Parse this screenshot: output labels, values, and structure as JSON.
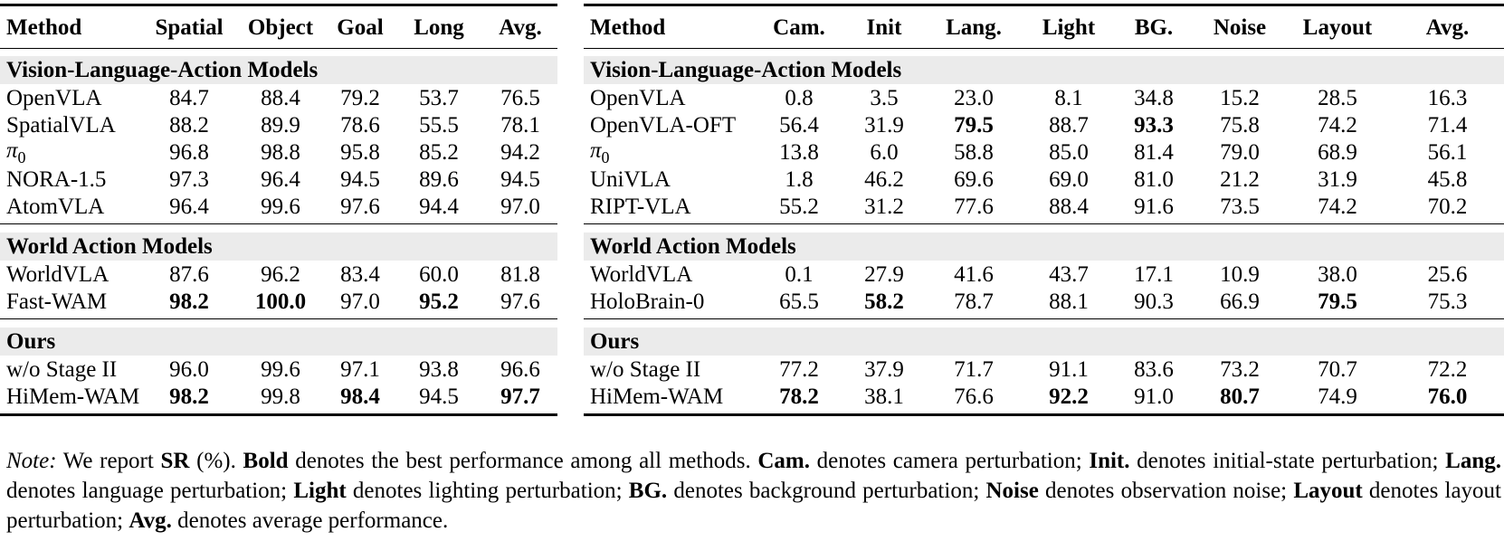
{
  "left_table": {
    "headers": [
      "Method",
      "Spatial",
      "Object",
      "Goal",
      "Long",
      "Avg."
    ],
    "groups": [
      {
        "title": "Vision-Language-Action Models",
        "rows": [
          {
            "method": "OpenVLA",
            "values": [
              "84.7",
              "88.4",
              "79.2",
              "53.7",
              "76.5"
            ],
            "bold": [
              false,
              false,
              false,
              false,
              false
            ]
          },
          {
            "method": "SpatialVLA",
            "values": [
              "88.2",
              "89.9",
              "78.6",
              "55.5",
              "78.1"
            ],
            "bold": [
              false,
              false,
              false,
              false,
              false
            ]
          },
          {
            "method": "π0",
            "values": [
              "96.8",
              "98.8",
              "95.8",
              "85.2",
              "94.2"
            ],
            "bold": [
              false,
              false,
              false,
              false,
              false
            ]
          },
          {
            "method": "NORA-1.5",
            "values": [
              "97.3",
              "96.4",
              "94.5",
              "89.6",
              "94.5"
            ],
            "bold": [
              false,
              false,
              false,
              false,
              false
            ]
          },
          {
            "method": "AtomVLA",
            "values": [
              "96.4",
              "99.6",
              "97.6",
              "94.4",
              "97.0"
            ],
            "bold": [
              false,
              false,
              false,
              false,
              false
            ]
          }
        ]
      },
      {
        "title": "World Action Models",
        "rows": [
          {
            "method": "WorldVLA",
            "values": [
              "87.6",
              "96.2",
              "83.4",
              "60.0",
              "81.8"
            ],
            "bold": [
              false,
              false,
              false,
              false,
              false
            ]
          },
          {
            "method": "Fast-WAM",
            "values": [
              "98.2",
              "100.0",
              "97.0",
              "95.2",
              "97.6"
            ],
            "bold": [
              true,
              true,
              false,
              true,
              false
            ]
          }
        ]
      },
      {
        "title": "Ours",
        "rows": [
          {
            "method": "w/o Stage II",
            "values": [
              "96.0",
              "99.6",
              "97.1",
              "93.8",
              "96.6"
            ],
            "bold": [
              false,
              false,
              false,
              false,
              false
            ]
          },
          {
            "method": "HiMem-WAM",
            "values": [
              "98.2",
              "99.8",
              "98.4",
              "94.5",
              "97.7"
            ],
            "bold": [
              true,
              false,
              true,
              false,
              true
            ]
          }
        ]
      }
    ]
  },
  "right_table": {
    "headers": [
      "Method",
      "Cam.",
      "Init",
      "Lang.",
      "Light",
      "BG.",
      "Noise",
      "Layout",
      "Avg."
    ],
    "groups": [
      {
        "title": "Vision-Language-Action Models",
        "rows": [
          {
            "method": "OpenVLA",
            "values": [
              "0.8",
              "3.5",
              "23.0",
              "8.1",
              "34.8",
              "15.2",
              "28.5",
              "16.3"
            ],
            "bold": [
              false,
              false,
              false,
              false,
              false,
              false,
              false,
              false
            ]
          },
          {
            "method": "OpenVLA-OFT",
            "values": [
              "56.4",
              "31.9",
              "79.5",
              "88.7",
              "93.3",
              "75.8",
              "74.2",
              "71.4"
            ],
            "bold": [
              false,
              false,
              true,
              false,
              true,
              false,
              false,
              false
            ]
          },
          {
            "method": "π0",
            "values": [
              "13.8",
              "6.0",
              "58.8",
              "85.0",
              "81.4",
              "79.0",
              "68.9",
              "56.1"
            ],
            "bold": [
              false,
              false,
              false,
              false,
              false,
              false,
              false,
              false
            ]
          },
          {
            "method": "UniVLA",
            "values": [
              "1.8",
              "46.2",
              "69.6",
              "69.0",
              "81.0",
              "21.2",
              "31.9",
              "45.8"
            ],
            "bold": [
              false,
              false,
              false,
              false,
              false,
              false,
              false,
              false
            ]
          },
          {
            "method": "RIPT-VLA",
            "values": [
              "55.2",
              "31.2",
              "77.6",
              "88.4",
              "91.6",
              "73.5",
              "74.2",
              "70.2"
            ],
            "bold": [
              false,
              false,
              false,
              false,
              false,
              false,
              false,
              false
            ]
          }
        ]
      },
      {
        "title": "World Action Models",
        "rows": [
          {
            "method": "WorldVLA",
            "values": [
              "0.1",
              "27.9",
              "41.6",
              "43.7",
              "17.1",
              "10.9",
              "38.0",
              "25.6"
            ],
            "bold": [
              false,
              false,
              false,
              false,
              false,
              false,
              false,
              false
            ]
          },
          {
            "method": "HoloBrain-0",
            "values": [
              "65.5",
              "58.2",
              "78.7",
              "88.1",
              "90.3",
              "66.9",
              "79.5",
              "75.3"
            ],
            "bold": [
              false,
              true,
              false,
              false,
              false,
              false,
              true,
              false
            ]
          }
        ]
      },
      {
        "title": "Ours",
        "rows": [
          {
            "method": "w/o Stage II",
            "values": [
              "77.2",
              "37.9",
              "71.7",
              "91.1",
              "83.6",
              "73.2",
              "70.7",
              "72.2"
            ],
            "bold": [
              false,
              false,
              false,
              false,
              false,
              false,
              false,
              false
            ]
          },
          {
            "method": "HiMem-WAM",
            "values": [
              "78.2",
              "38.1",
              "76.6",
              "92.2",
              "91.0",
              "80.7",
              "74.9",
              "76.0"
            ],
            "bold": [
              true,
              false,
              false,
              true,
              false,
              true,
              false,
              true
            ]
          }
        ]
      }
    ]
  },
  "note": {
    "label": "Note:",
    "t1": " We report ",
    "b1": "SR",
    "t2": " (%). ",
    "b2": "Bold",
    "t3": " denotes the best performance among all methods. ",
    "b3": "Cam.",
    "t4": " denotes camera perturbation; ",
    "b4": "Init.",
    "t5": " denotes initial-state perturbation; ",
    "b5": "Lang.",
    "t6": " denotes language perturbation; ",
    "b6": "Light",
    "t7": " denotes lighting perturbation; ",
    "b7": "BG.",
    "t8": " denotes background perturbation; ",
    "b8": "Noise",
    "t9": " denotes observation noise; ",
    "b9": "Layout",
    "t10": " denotes layout perturbation; ",
    "b10": "Avg.",
    "t11": " denotes average performance."
  }
}
